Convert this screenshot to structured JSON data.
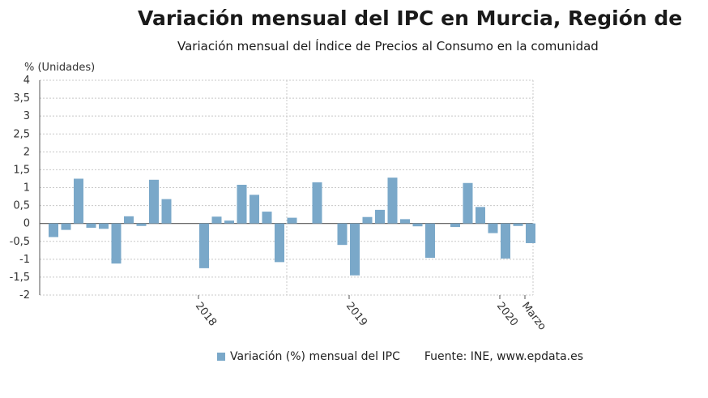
{
  "header": {
    "title": "Variación mensual del IPC en Murcia, Región de",
    "subtitle": "Variación mensual del Índice de Precios al Consumo en la comunidad"
  },
  "legend": {
    "label": "Variación (%) mensual del IPC",
    "source": "Fuente: INE, www.epdata.es"
  },
  "colors": {
    "bar": "#7aa8c9",
    "grid": "#c8c8c8",
    "axis": "#555555"
  },
  "chart_data": {
    "type": "bar",
    "ylabel": "% (Unidades)",
    "ylim": [
      -2,
      4
    ],
    "yticks": [
      "4",
      "3,5",
      "3",
      "2,5",
      "2",
      "1,5",
      "1",
      "0,5",
      "0",
      "-0,5",
      "-1",
      "-1,5",
      "-2"
    ],
    "xtick_labels": [
      {
        "label": "2018",
        "index": 12
      },
      {
        "label": "2019",
        "index": 24
      },
      {
        "label": "2020",
        "index": 36
      },
      {
        "label": "Marzo",
        "index": 38
      }
    ],
    "grid": true,
    "series": [
      {
        "name": "Variación (%) mensual del IPC",
        "values": [
          -0.38,
          -0.18,
          1.25,
          -0.12,
          -0.15,
          -1.12,
          0.2,
          -0.07,
          1.22,
          0.68,
          0.0,
          0.0,
          -1.25,
          0.19,
          0.08,
          1.08,
          0.8,
          0.33,
          -1.08,
          0.16,
          0.0,
          1.15,
          0.0,
          -0.6,
          -1.45,
          0.18,
          0.38,
          1.28,
          0.12,
          -0.08,
          -0.96,
          0.0,
          -0.1,
          1.13,
          0.46,
          -0.27,
          -0.98,
          -0.07,
          -0.55
        ]
      }
    ]
  }
}
